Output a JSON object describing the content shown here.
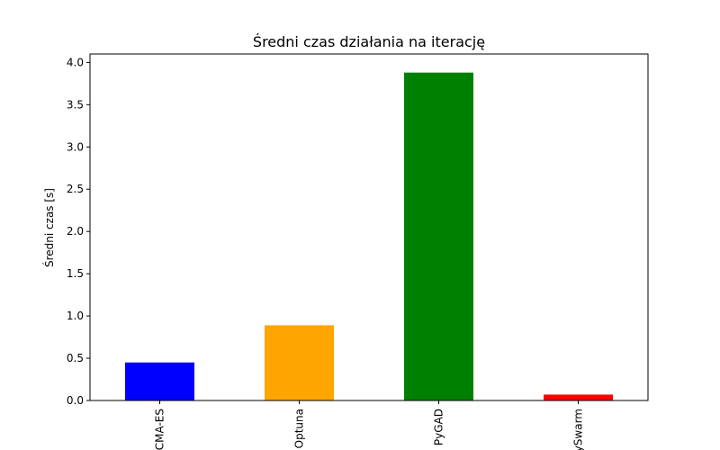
{
  "chart_data": {
    "type": "bar",
    "title": "Średni czas działania na iterację",
    "xlabel": "",
    "ylabel": "Średni czas [s]",
    "categories": [
      "CMA-ES",
      "Optuna",
      "PyGAD",
      "PySwarm"
    ],
    "values": [
      0.45,
      0.89,
      3.88,
      0.07
    ],
    "colors": [
      "#0000ff",
      "#ffa500",
      "#008000",
      "#ff0000"
    ],
    "ylim": [
      0,
      4.1
    ],
    "yticks": [
      0.0,
      0.5,
      1.0,
      1.5,
      2.0,
      2.5,
      3.0,
      3.5,
      4.0
    ],
    "ytick_labels": [
      "0.0",
      "0.5",
      "1.0",
      "1.5",
      "2.0",
      "2.5",
      "3.0",
      "3.5",
      "4.0"
    ],
    "grid": false,
    "legend": "none"
  }
}
